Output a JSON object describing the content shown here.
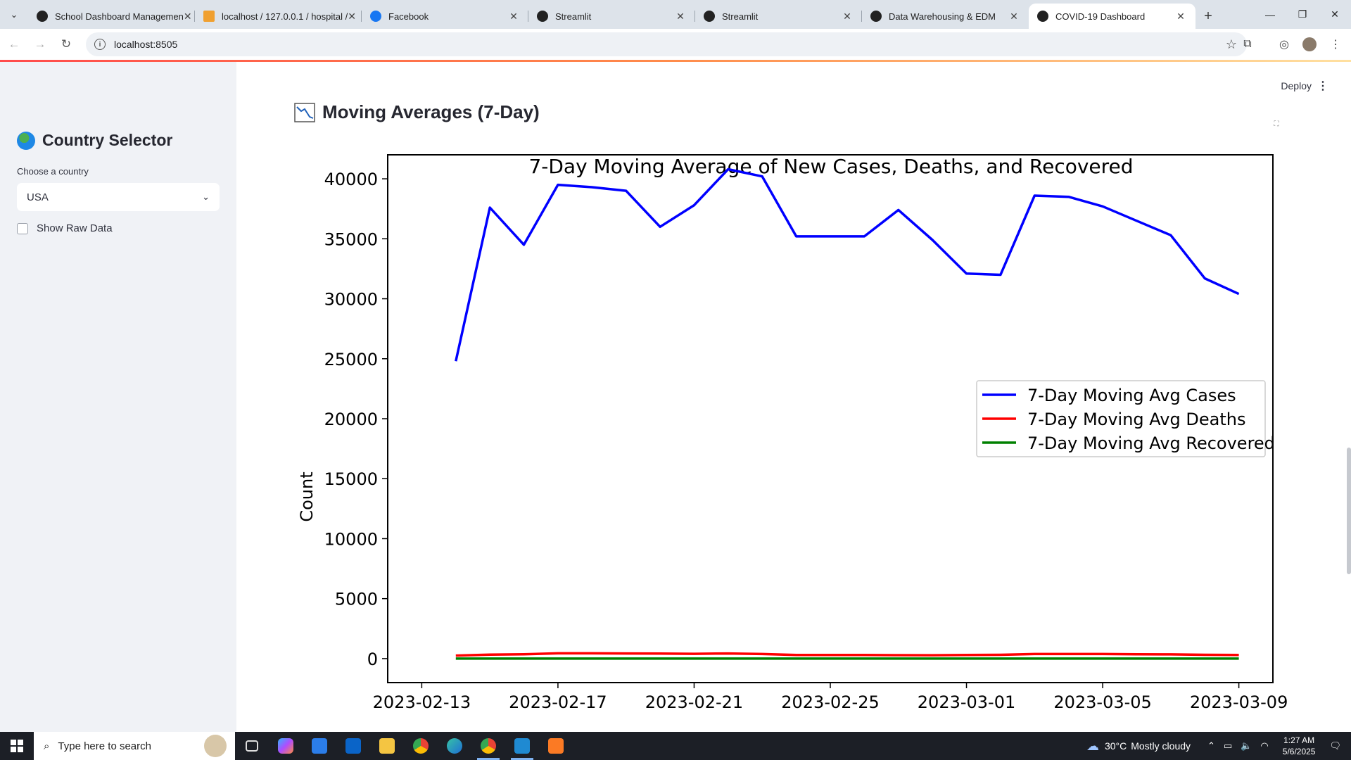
{
  "browser": {
    "tabs": [
      {
        "label": "School Dashboard Managemen",
        "active": false
      },
      {
        "label": "localhost / 127.0.0.1 / hospital /",
        "active": false
      },
      {
        "label": "Facebook",
        "active": false
      },
      {
        "label": "Streamlit",
        "active": false
      },
      {
        "label": "Streamlit",
        "active": false
      },
      {
        "label": "Data Warehousing & EDM",
        "active": false
      },
      {
        "label": "COVID-19 Dashboard",
        "active": true
      }
    ],
    "url": "localhost:8505"
  },
  "sidebar": {
    "title": "Country Selector",
    "select_label": "Choose a country",
    "select_value": "USA",
    "checkbox_label": "Show Raw Data"
  },
  "header": {
    "deploy_label": "Deploy"
  },
  "main": {
    "section_title": "Moving Averages (7-Day)"
  },
  "chart_data": {
    "type": "line",
    "title": "7-Day Moving Average of New Cases, Deaths, and Recovered",
    "xlabel": "",
    "ylabel": "Count",
    "ylim": [
      -2000,
      42000
    ],
    "xlim": [
      "2023-02-12",
      "2023-03-10"
    ],
    "yticks": [
      0,
      5000,
      10000,
      15000,
      20000,
      25000,
      30000,
      35000,
      40000
    ],
    "xticks": [
      "2023-02-13",
      "2023-02-17",
      "2023-02-21",
      "2023-02-25",
      "2023-03-01",
      "2023-03-05",
      "2023-03-09"
    ],
    "legend_position": "center-right",
    "grid": false,
    "x": [
      "2023-02-14",
      "2023-02-15",
      "2023-02-16",
      "2023-02-17",
      "2023-02-18",
      "2023-02-19",
      "2023-02-20",
      "2023-02-21",
      "2023-02-22",
      "2023-02-23",
      "2023-02-24",
      "2023-02-25",
      "2023-02-26",
      "2023-02-27",
      "2023-02-28",
      "2023-03-01",
      "2023-03-02",
      "2023-03-03",
      "2023-03-04",
      "2023-03-05",
      "2023-03-06",
      "2023-03-07",
      "2023-03-08",
      "2023-03-09"
    ],
    "series": [
      {
        "name": "7-Day Moving Avg Cases",
        "color": "#0000ff",
        "values": [
          24800,
          37600,
          34500,
          39500,
          39300,
          39000,
          36000,
          37800,
          40800,
          40200,
          35200,
          35200,
          35200,
          37400,
          34900,
          32100,
          32000,
          38600,
          38500,
          37700,
          36500,
          35300,
          31700,
          30400
        ]
      },
      {
        "name": "7-Day Moving Avg Deaths",
        "color": "#ff0000",
        "values": [
          250,
          330,
          360,
          440,
          440,
          430,
          420,
          400,
          430,
          380,
          300,
          300,
          300,
          290,
          280,
          300,
          320,
          380,
          380,
          380,
          360,
          350,
          320,
          300
        ]
      },
      {
        "name": "7-Day Moving Avg Recovered",
        "color": "#008000",
        "values": [
          0,
          0,
          0,
          0,
          0,
          0,
          0,
          0,
          0,
          0,
          0,
          0,
          0,
          0,
          0,
          0,
          0,
          0,
          0,
          0,
          0,
          0,
          0,
          0
        ]
      }
    ]
  },
  "taskbar": {
    "search_placeholder": "Type here to search",
    "weather_temp": "30°C",
    "weather_text": "Mostly cloudy",
    "time": "1:27 AM",
    "date": "5/6/2025"
  },
  "colors": {
    "sidebar_bg": "#f0f2f6",
    "accent": "#ff4b4b"
  }
}
